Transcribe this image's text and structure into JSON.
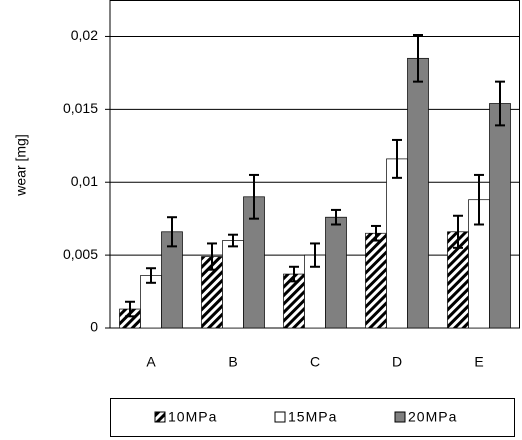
{
  "chart_data": {
    "type": "bar",
    "y_label": "wear [mg]",
    "categories": [
      "A",
      "B",
      "C",
      "D",
      "E"
    ],
    "series": [
      {
        "name": "10MPa",
        "color": "#000000",
        "pattern": "hatch",
        "values": [
          0.0013,
          0.0049,
          0.0037,
          0.0065,
          0.0066
        ],
        "errors": [
          0.0005,
          0.0009,
          0.0005,
          0.0005,
          0.0011
        ]
      },
      {
        "name": "15MPa",
        "color": "#ffffff",
        "values": [
          0.0036,
          0.006,
          0.005,
          0.0116,
          0.0088
        ],
        "errors": [
          0.0005,
          0.0004,
          0.0008,
          0.0013,
          0.0017
        ]
      },
      {
        "name": "20MPa",
        "color": "#808080",
        "values": [
          0.0066,
          0.009,
          0.0076,
          0.0185,
          0.0154
        ],
        "errors": [
          0.001,
          0.0015,
          0.0005,
          0.0016,
          0.0015
        ]
      }
    ],
    "ylim": [
      0,
      0.0225
    ],
    "yticks": [
      0,
      {
        "value": 0.005,
        "label": "0,005"
      },
      {
        "value": 0.01,
        "label": "0,01"
      },
      {
        "value": 0.015,
        "label": "0,015"
      },
      {
        "value": 0.02,
        "label": "0,02"
      }
    ],
    "grid": true,
    "legend": "bottom"
  }
}
